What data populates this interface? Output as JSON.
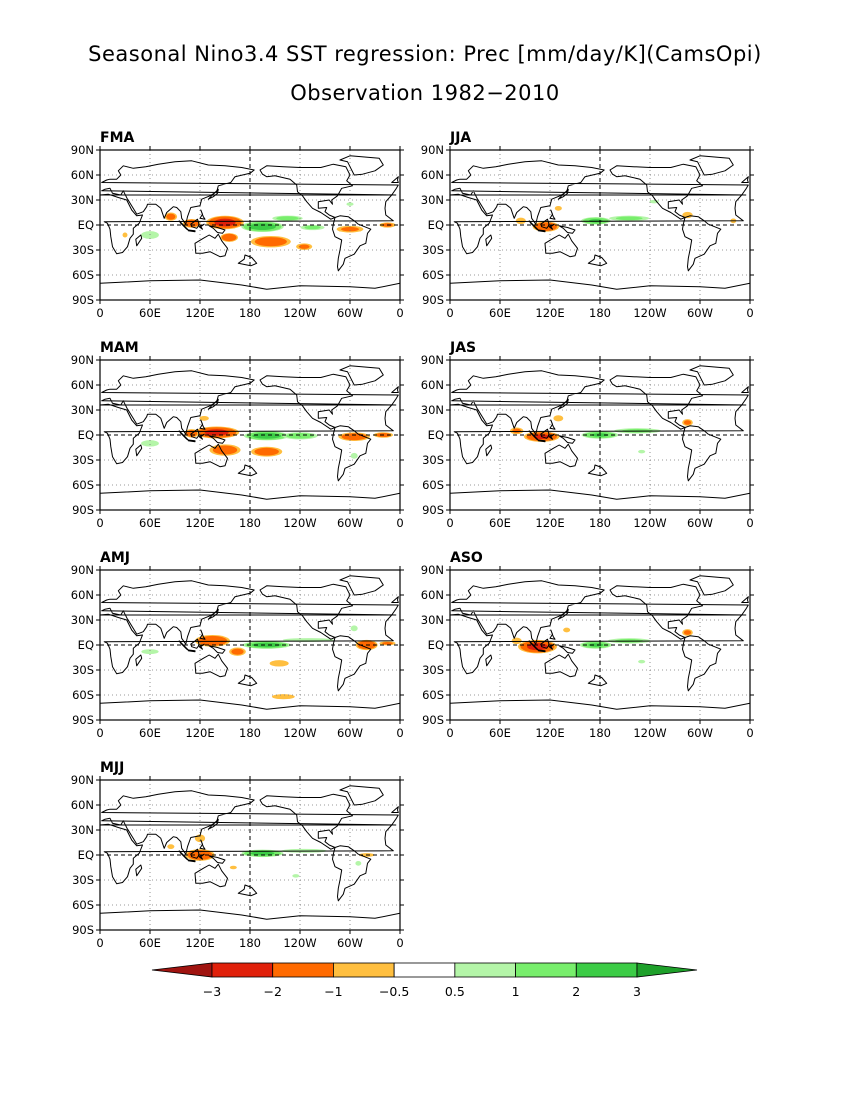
{
  "title": "Seasonal Nino3.4 SST regression: Prec [mm/day/K](CamsOpi)",
  "subtitle": "Observation 1982−2010",
  "colors": {
    "neg3": "#a01410",
    "neg2": "#e0200a",
    "neg1": "#ff6a00",
    "neg05": "#ffbf40",
    "pos05": "#b4f5a8",
    "pos1": "#78ee6c",
    "pos2": "#3ccc46",
    "pos3": "#1ea02a",
    "land": "#000000"
  },
  "colorbar": {
    "labels": [
      "−3",
      "−2",
      "−1",
      "−0.5",
      "0.5",
      "1",
      "2",
      "3"
    ]
  },
  "chart_data": {
    "type": "heatmap",
    "lat_ticks": [
      "90N",
      "60N",
      "30N",
      "EQ",
      "30S",
      "60S",
      "90S"
    ],
    "lon_ticks": [
      "0",
      "60E",
      "120E",
      "180",
      "120W",
      "60W",
      "0"
    ],
    "levels": [
      -3,
      -2,
      -1,
      -0.5,
      0.5,
      1,
      2,
      3
    ],
    "panels": [
      {
        "name": "FMA",
        "blobs": [
          {
            "lon": 150,
            "lat": 3,
            "rl": 25,
            "rt": 9,
            "v": -2.3
          },
          {
            "lon": 110,
            "lat": 2,
            "rl": 12,
            "rt": 6,
            "v": -1.8
          },
          {
            "lon": 85,
            "lat": 10,
            "rl": 9,
            "rt": 6,
            "v": -1.2
          },
          {
            "lon": 155,
            "lat": -15,
            "rl": 12,
            "rt": 6,
            "v": -1.8
          },
          {
            "lon": 205,
            "lat": -20,
            "rl": 28,
            "rt": 8,
            "v": -1.5
          },
          {
            "lon": 245,
            "lat": -26,
            "rl": 12,
            "rt": 5,
            "v": -1
          },
          {
            "lon": 195,
            "lat": -2,
            "rl": 28,
            "rt": 7,
            "v": 2.6
          },
          {
            "lon": 225,
            "lat": 8,
            "rl": 22,
            "rt": 4,
            "v": 1.2
          },
          {
            "lon": 255,
            "lat": -3,
            "rl": 18,
            "rt": 4,
            "v": 1
          },
          {
            "lon": 60,
            "lat": -12,
            "rl": 14,
            "rt": 6,
            "v": 0.8
          },
          {
            "lon": 300,
            "lat": -5,
            "rl": 20,
            "rt": 5,
            "v": -1
          },
          {
            "lon": 345,
            "lat": 0,
            "rl": 12,
            "rt": 4,
            "v": -1
          },
          {
            "lon": 300,
            "lat": 25,
            "rl": 6,
            "rt": 3,
            "v": 0.6
          },
          {
            "lon": 30,
            "lat": -12,
            "rl": 4,
            "rt": 4,
            "v": -0.7
          }
        ]
      },
      {
        "name": "MAM",
        "blobs": [
          {
            "lon": 140,
            "lat": 3,
            "rl": 30,
            "rt": 8,
            "v": -2.2
          },
          {
            "lon": 150,
            "lat": -18,
            "rl": 22,
            "rt": 8,
            "v": -1.4
          },
          {
            "lon": 200,
            "lat": -20,
            "rl": 22,
            "rt": 7,
            "v": -1.4
          },
          {
            "lon": 110,
            "lat": 2,
            "rl": 10,
            "rt": 6,
            "v": -1.4
          },
          {
            "lon": 200,
            "lat": -1,
            "rl": 30,
            "rt": 6,
            "v": 2.6
          },
          {
            "lon": 240,
            "lat": -1,
            "rl": 25,
            "rt": 5,
            "v": 1.4
          },
          {
            "lon": 60,
            "lat": -10,
            "rl": 14,
            "rt": 5,
            "v": 0.8
          },
          {
            "lon": 305,
            "lat": -2,
            "rl": 22,
            "rt": 6,
            "v": -1.5
          },
          {
            "lon": 340,
            "lat": 0,
            "rl": 14,
            "rt": 4,
            "v": -1.2
          },
          {
            "lon": 125,
            "lat": 20,
            "rl": 8,
            "rt": 4,
            "v": -0.6
          },
          {
            "lon": 305,
            "lat": -25,
            "rl": 6,
            "rt": 5,
            "v": 0.6
          }
        ]
      },
      {
        "name": "AMJ",
        "blobs": [
          {
            "lon": 135,
            "lat": 5,
            "rl": 24,
            "rt": 8,
            "v": -1.8
          },
          {
            "lon": 165,
            "lat": -8,
            "rl": 12,
            "rt": 6,
            "v": -1.2
          },
          {
            "lon": 215,
            "lat": -22,
            "rl": 15,
            "rt": 5,
            "v": -0.8
          },
          {
            "lon": 200,
            "lat": 0,
            "rl": 32,
            "rt": 5,
            "v": 2.5
          },
          {
            "lon": 250,
            "lat": 6,
            "rl": 40,
            "rt": 3,
            "v": 0.8
          },
          {
            "lon": 60,
            "lat": -8,
            "rl": 14,
            "rt": 4,
            "v": 0.7
          },
          {
            "lon": 320,
            "lat": 0,
            "rl": 15,
            "rt": 7,
            "v": -1.8
          },
          {
            "lon": 345,
            "lat": 2,
            "rl": 12,
            "rt": 3,
            "v": -1
          },
          {
            "lon": 305,
            "lat": 20,
            "rl": 6,
            "rt": 5,
            "v": 0.6
          },
          {
            "lon": 220,
            "lat": -62,
            "rl": 18,
            "rt": 4,
            "v": -0.8
          }
        ]
      },
      {
        "name": "MJJ",
        "blobs": [
          {
            "lon": 120,
            "lat": 0,
            "rl": 20,
            "rt": 8,
            "v": -1.8
          },
          {
            "lon": 120,
            "lat": 20,
            "rl": 8,
            "rt": 6,
            "v": -0.8
          },
          {
            "lon": 195,
            "lat": 2,
            "rl": 28,
            "rt": 5,
            "v": 2.3
          },
          {
            "lon": 245,
            "lat": 5,
            "rl": 35,
            "rt": 3,
            "v": 0.9
          },
          {
            "lon": 320,
            "lat": 0,
            "rl": 12,
            "rt": 3,
            "v": -0.8
          },
          {
            "lon": 85,
            "lat": 10,
            "rl": 6,
            "rt": 4,
            "v": -0.6
          },
          {
            "lon": 235,
            "lat": -25,
            "rl": 6,
            "rt": 3,
            "v": 0.6
          },
          {
            "lon": 160,
            "lat": -15,
            "rl": 6,
            "rt": 3,
            "v": -0.6
          },
          {
            "lon": 310,
            "lat": -10,
            "rl": 5,
            "rt": 4,
            "v": 0.6
          }
        ]
      },
      {
        "name": "JJA",
        "blobs": [
          {
            "lon": 115,
            "lat": -2,
            "rl": 18,
            "rt": 7,
            "v": -1.8
          },
          {
            "lon": 85,
            "lat": 5,
            "rl": 8,
            "rt": 5,
            "v": -0.8
          },
          {
            "lon": 175,
            "lat": 5,
            "rl": 20,
            "rt": 5,
            "v": 2
          },
          {
            "lon": 215,
            "lat": 8,
            "rl": 30,
            "rt": 4,
            "v": 1
          },
          {
            "lon": 285,
            "lat": 12,
            "rl": 8,
            "rt": 5,
            "v": -0.8
          },
          {
            "lon": 245,
            "lat": 28,
            "rl": 8,
            "rt": 3,
            "v": 0.6
          },
          {
            "lon": 340,
            "lat": 5,
            "rl": 5,
            "rt": 4,
            "v": -0.6
          },
          {
            "lon": 130,
            "lat": 20,
            "rl": 6,
            "rt": 4,
            "v": -0.6
          }
        ]
      },
      {
        "name": "JAS",
        "blobs": [
          {
            "lon": 110,
            "lat": -2,
            "rl": 24,
            "rt": 7,
            "v": -2
          },
          {
            "lon": 80,
            "lat": 5,
            "rl": 10,
            "rt": 5,
            "v": -1
          },
          {
            "lon": 180,
            "lat": 0,
            "rl": 25,
            "rt": 5,
            "v": 2
          },
          {
            "lon": 225,
            "lat": 5,
            "rl": 35,
            "rt": 4,
            "v": 1
          },
          {
            "lon": 130,
            "lat": 20,
            "rl": 8,
            "rt": 5,
            "v": -0.7
          },
          {
            "lon": 285,
            "lat": 15,
            "rl": 8,
            "rt": 5,
            "v": -1
          },
          {
            "lon": 230,
            "lat": -20,
            "rl": 6,
            "rt": 3,
            "v": 0.6
          }
        ]
      },
      {
        "name": "ASO",
        "blobs": [
          {
            "lon": 105,
            "lat": -2,
            "rl": 26,
            "rt": 9,
            "v": -2.2
          },
          {
            "lon": 80,
            "lat": 5,
            "rl": 8,
            "rt": 5,
            "v": -0.8
          },
          {
            "lon": 175,
            "lat": 0,
            "rl": 22,
            "rt": 5,
            "v": 2
          },
          {
            "lon": 215,
            "lat": 5,
            "rl": 32,
            "rt": 4,
            "v": 1
          },
          {
            "lon": 285,
            "lat": 15,
            "rl": 8,
            "rt": 5,
            "v": -1
          },
          {
            "lon": 230,
            "lat": -20,
            "rl": 6,
            "rt": 3,
            "v": 0.6
          },
          {
            "lon": 140,
            "lat": 18,
            "rl": 6,
            "rt": 4,
            "v": -0.6
          }
        ]
      }
    ]
  }
}
